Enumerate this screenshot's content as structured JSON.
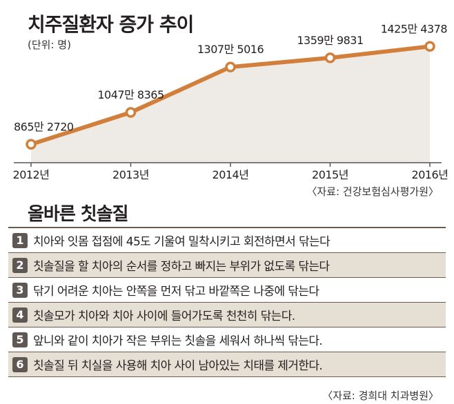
{
  "chart_data": {
    "type": "line",
    "title": "치주질환자 증가 추이",
    "unit_label": "(단위: 명)",
    "categories": [
      "2012년",
      "2013년",
      "2014년",
      "2015년",
      "2016년"
    ],
    "values": [
      8652720,
      10478365,
      13075016,
      13599831,
      14254378
    ],
    "data_labels": [
      "865만 2720",
      "1047만 8365",
      "1307만 5016",
      "1359만 9831",
      "1425만 4378"
    ],
    "ylim": [
      7600000,
      14700000
    ],
    "grid": false,
    "line_color": "#d17f3a",
    "area_color": "#eeebe7",
    "source": "〈자료: 건강보험심사평가원〉"
  },
  "tips": {
    "title": "올바른 칫솔질",
    "steps": [
      {
        "num": "1",
        "text": "치아와 잇몸 접점에 45도 기울여 밀착시키고 회전하면서 닦는다"
      },
      {
        "num": "2",
        "text": "칫솔질을 할 치아의 순서를 정하고 빠지는 부위가 없도록 닦는다"
      },
      {
        "num": "3",
        "text": "닦기 어려운 치아는 안쪽을 먼저 닦고 바깥쪽은 나중에 닦는다"
      },
      {
        "num": "4",
        "text": "칫솔모가 치아와 치아 사이에 들어가도록 천천히 닦는다."
      },
      {
        "num": "5",
        "text": "앞니와 같이 치아가 작은 부위는 칫솔을 세워서 하나씩 닦는다."
      },
      {
        "num": "6",
        "text": "칫솔질 뒤 치실을 사용해 치아 사이 남아있는 치태를 제거한다."
      }
    ],
    "source": "〈자료: 경희대 치과병원〉"
  }
}
